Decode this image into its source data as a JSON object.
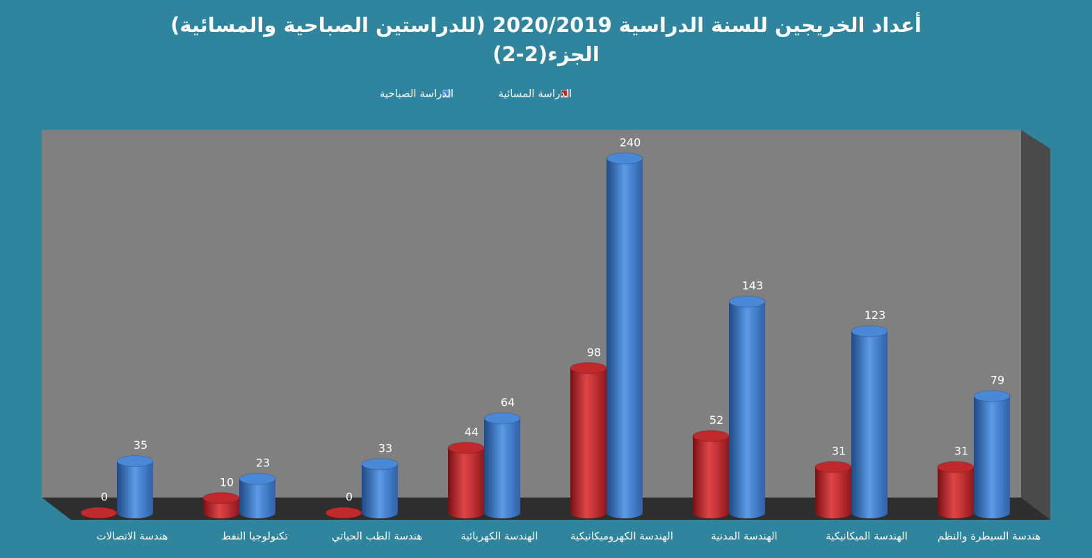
{
  "chart_data": {
    "type": "bar3d",
    "title": "أعداد الخريجين للسنة الدراسية 2020/2019 (للدراستين الصباحية والمسائية)",
    "subtitle": "الجزء(2-2)",
    "categories": [
      "هندسة الاتصالات",
      "تكنولوجيا النفط",
      "هندسة الطب الحياتي",
      "الهندسة الكهربائية",
      "الهندسة الكهروميكانيكية",
      "الهندسة المدنية",
      "الهندسة الميكانيكية",
      "هندسة السيطرة والنظم"
    ],
    "series": [
      {
        "name": "الدراسة المسائية",
        "color": "#c0292b",
        "values": [
          0,
          10,
          0,
          44,
          98,
          52,
          31,
          31
        ]
      },
      {
        "name": "الدراسة الصباحية",
        "color": "#4a88d8",
        "values": [
          35,
          23,
          33,
          64,
          240,
          143,
          123,
          79
        ]
      }
    ]
  }
}
